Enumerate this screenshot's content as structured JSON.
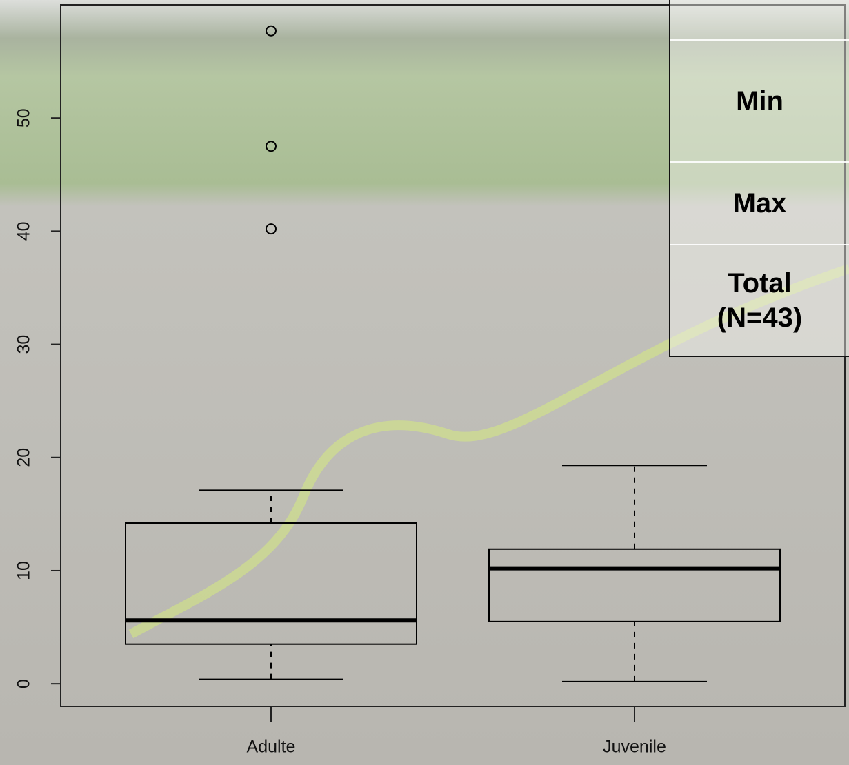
{
  "chart_data": {
    "type": "box",
    "categories": [
      "Adulte",
      "Juvenile"
    ],
    "stats": [
      {
        "whisker_low": 0.4,
        "q1": 3.5,
        "median": 5.6,
        "q3": 14.2,
        "whisker_high": 17.1,
        "outliers": [
          57.7,
          47.5,
          40.2
        ]
      },
      {
        "whisker_low": 0.2,
        "q1": 5.5,
        "median": 10.2,
        "q3": 11.9,
        "whisker_high": 19.3,
        "outliers": []
      }
    ],
    "color": "#000000",
    "ylim": [
      -2,
      60
    ],
    "yticks": [
      0,
      10,
      20,
      30,
      40,
      50
    ]
  },
  "table": {
    "rows": [
      "Min",
      "Max",
      "Total (N=43)"
    ]
  }
}
